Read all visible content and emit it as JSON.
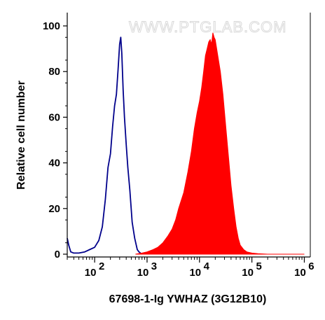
{
  "chart_data": {
    "type": "area",
    "xscale": "log",
    "xlim": [
      30,
      1300000
    ],
    "ylim": [
      0,
      100
    ],
    "xlabel": "67698-1-Ig YWHAZ (3G12B10)",
    "ylabel": "Relative cell number",
    "watermark": "WWW.PTGLAB.COM",
    "x_ticks": [
      {
        "value": 100,
        "base": "10",
        "exp": "2"
      },
      {
        "value": 1000,
        "base": "10",
        "exp": "3"
      },
      {
        "value": 10000,
        "base": "10",
        "exp": "4"
      },
      {
        "value": 100000,
        "base": "10",
        "exp": "5"
      },
      {
        "value": 1000000,
        "base": "10",
        "exp": "6"
      }
    ],
    "y_ticks": [
      "0",
      "20",
      "40",
      "60",
      "80",
      "100"
    ],
    "series": [
      {
        "style": "outline",
        "color": "#00008b",
        "x": [
          30,
          32,
          35,
          40,
          50,
          65,
          80,
          100,
          120,
          140,
          160,
          180,
          200,
          220,
          240,
          260,
          280,
          300,
          315,
          330,
          350,
          370,
          400,
          430,
          470,
          520,
          580,
          650,
          700,
          750,
          800
        ],
        "y": [
          7,
          4,
          1,
          0.5,
          0.5,
          1,
          2,
          3,
          6,
          12,
          24,
          38,
          44,
          56,
          65,
          70,
          81,
          92,
          95,
          88,
          72,
          60,
          48,
          38,
          28,
          14,
          7,
          2,
          1,
          0.5,
          0
        ]
      },
      {
        "style": "filled",
        "color": "#ff0000",
        "x": [
          600,
          800,
          1000,
          1300,
          1600,
          2000,
          2500,
          3000,
          3500,
          4000,
          5000,
          6000,
          7000,
          8000,
          9000,
          10000,
          11000,
          12000,
          13000,
          14000,
          15000,
          16000,
          17000,
          18000,
          19000,
          20000,
          22000,
          25000,
          28000,
          32000,
          36000,
          40000,
          45000,
          50000,
          55000,
          60000,
          70000,
          80000,
          100000,
          130000,
          200000,
          1000000
        ],
        "y": [
          0,
          0.5,
          1,
          2,
          3,
          5,
          8,
          11,
          15,
          20,
          27,
          36,
          45,
          55,
          62,
          67,
          73,
          80,
          87,
          90,
          93,
          94,
          92,
          97,
          95,
          94,
          88,
          80,
          70,
          55,
          42,
          30,
          20,
          12,
          7,
          4,
          2,
          1,
          0.5,
          0.2,
          0,
          0
        ]
      }
    ]
  }
}
